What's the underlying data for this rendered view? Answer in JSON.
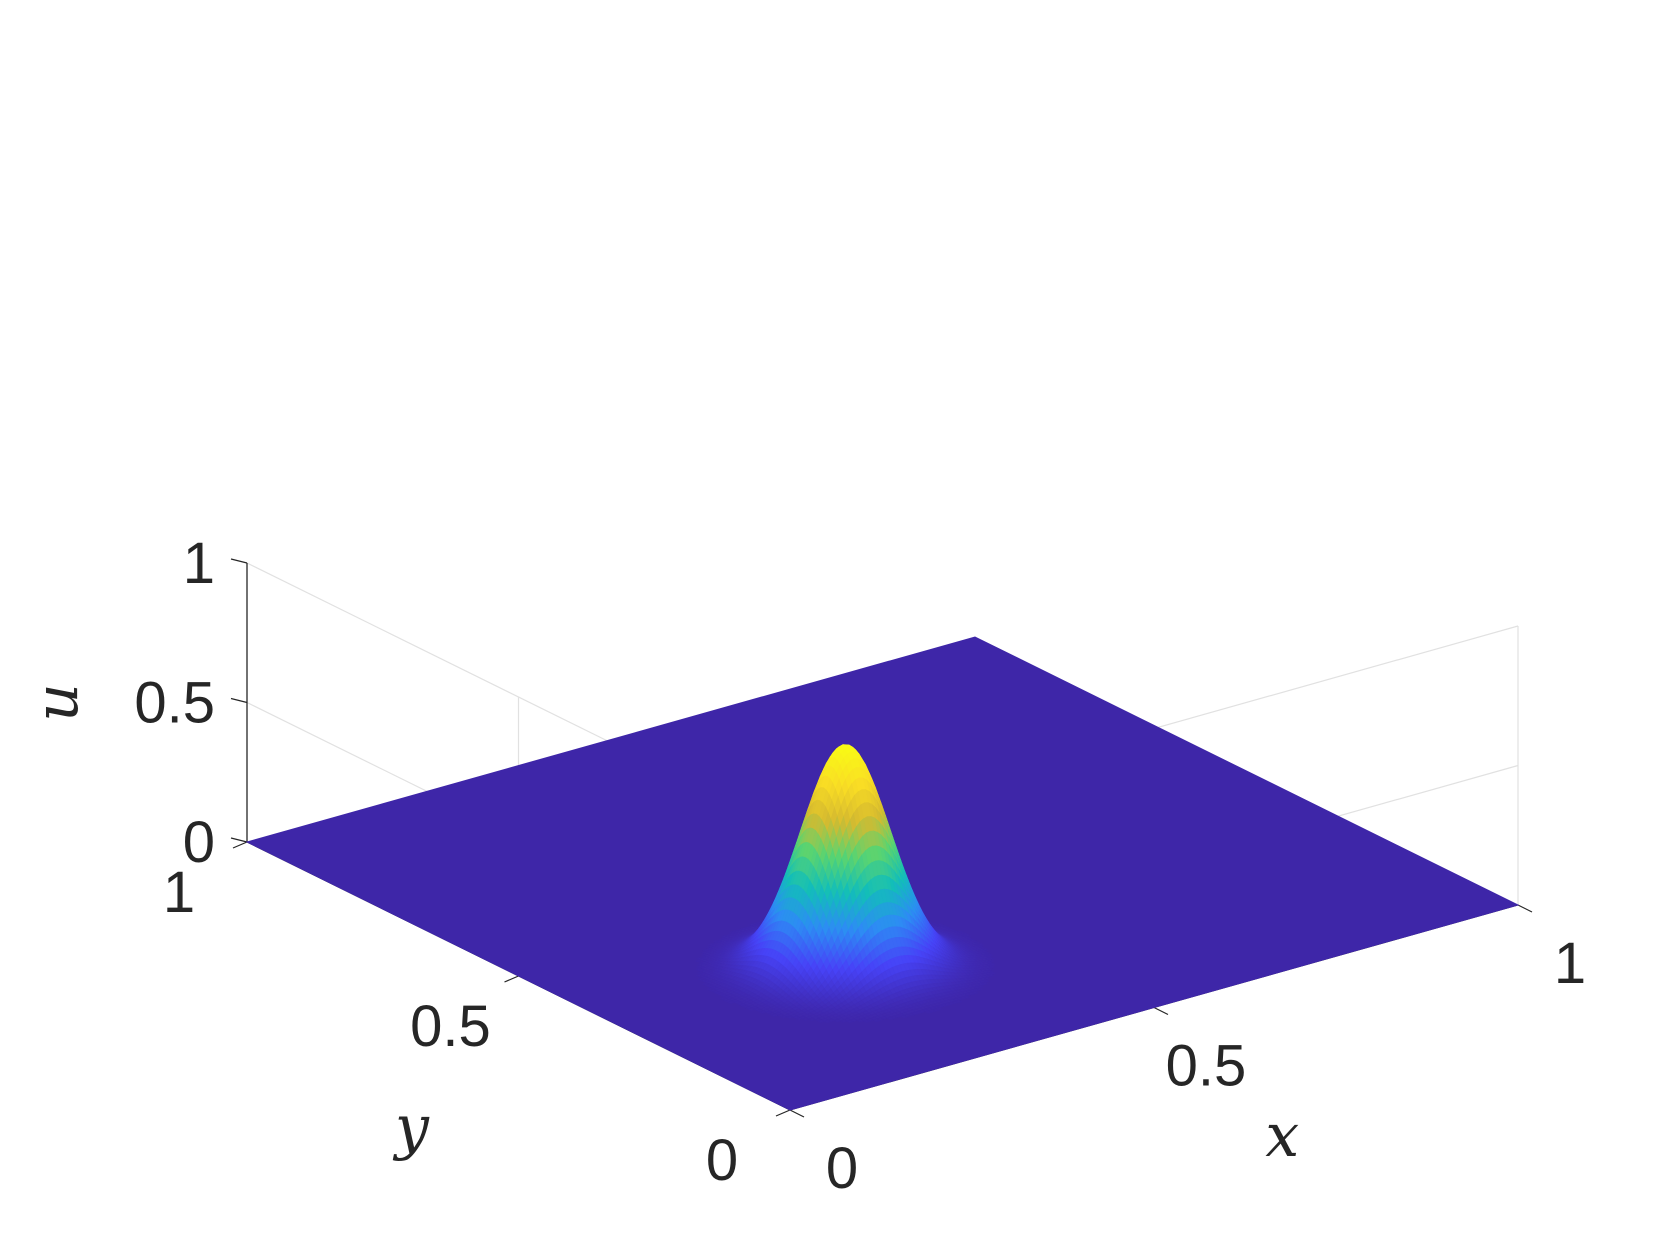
{
  "chart_data": {
    "type": "surface",
    "title": "",
    "xlabel": "x",
    "ylabel": "y",
    "zlabel": "u",
    "xlim": [
      0,
      1
    ],
    "ylim": [
      0,
      1
    ],
    "zlim": [
      0,
      1
    ],
    "x_ticks": [
      "0",
      "0.5",
      "1"
    ],
    "y_ticks": [
      "0",
      "0.5",
      "1"
    ],
    "z_ticks": [
      "0",
      "0.5",
      "1"
    ],
    "grid": true,
    "colormap": [
      "#3e26a8",
      "#4743f7",
      "#2d8cf4",
      "#12beb9",
      "#59d471",
      "#d6ba2f",
      "#f9dd25",
      "#f9fb15"
    ],
    "surface_function": "gaussian bump",
    "peak": {
      "x": 0.3,
      "y": 0.3,
      "u": 0.8
    },
    "width_sigma": 0.05
  }
}
